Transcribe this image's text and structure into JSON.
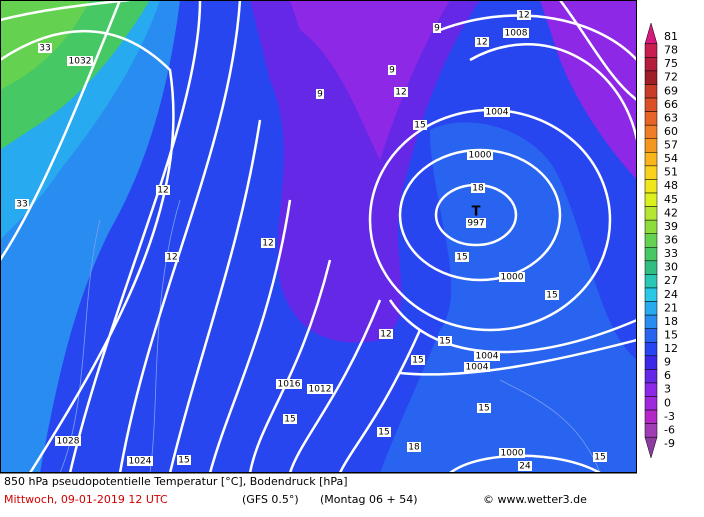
{
  "caption": {
    "line1": "850 hPa pseudopotentielle Temperatur [°C], Bodendruck [hPa]",
    "date": "Mittwoch, 09-01-2019  12 UTC",
    "model": "(GFS 0.5°)",
    "run": "(Montag 06 + 54)",
    "copyright": "© www.wetter3.de"
  },
  "colorbar": {
    "ticks": [
      81,
      78,
      75,
      72,
      69,
      66,
      63,
      60,
      57,
      54,
      51,
      48,
      45,
      42,
      39,
      36,
      33,
      30,
      27,
      24,
      21,
      18,
      15,
      12,
      9,
      6,
      3,
      0,
      -3,
      -6,
      -9
    ],
    "colors": [
      "#d41a7a",
      "#c81e50",
      "#b41e3c",
      "#a01e28",
      "#c83c28",
      "#dc5028",
      "#e66428",
      "#f07d28",
      "#f5961e",
      "#fab41e",
      "#fad21e",
      "#f0e61e",
      "#dcf01e",
      "#b4e632",
      "#8cdc3c",
      "#64d250",
      "#46c864",
      "#32be82",
      "#28c8b4",
      "#28c8e6",
      "#28aaf0",
      "#288cf0",
      "#2864f0",
      "#2846f0",
      "#3c28e6",
      "#6428e6",
      "#8c28e6",
      "#a028dc",
      "#b428c8",
      "#a03cb4",
      "#8c3ca0"
    ]
  },
  "map_labels": [
    "1032",
    "1008",
    "1004",
    "1000",
    "T",
    "997",
    "1000",
    "1004",
    "1004",
    "1016",
    "1012",
    "1028",
    "1024",
    "1000",
    "12",
    "12",
    "9",
    "9",
    "9",
    "12",
    "15",
    "18",
    "15",
    "12",
    "12",
    "12",
    "33",
    "33",
    "12",
    "15",
    "15",
    "15",
    "15",
    "15",
    "18",
    "15",
    "15",
    "15",
    "24"
  ]
}
